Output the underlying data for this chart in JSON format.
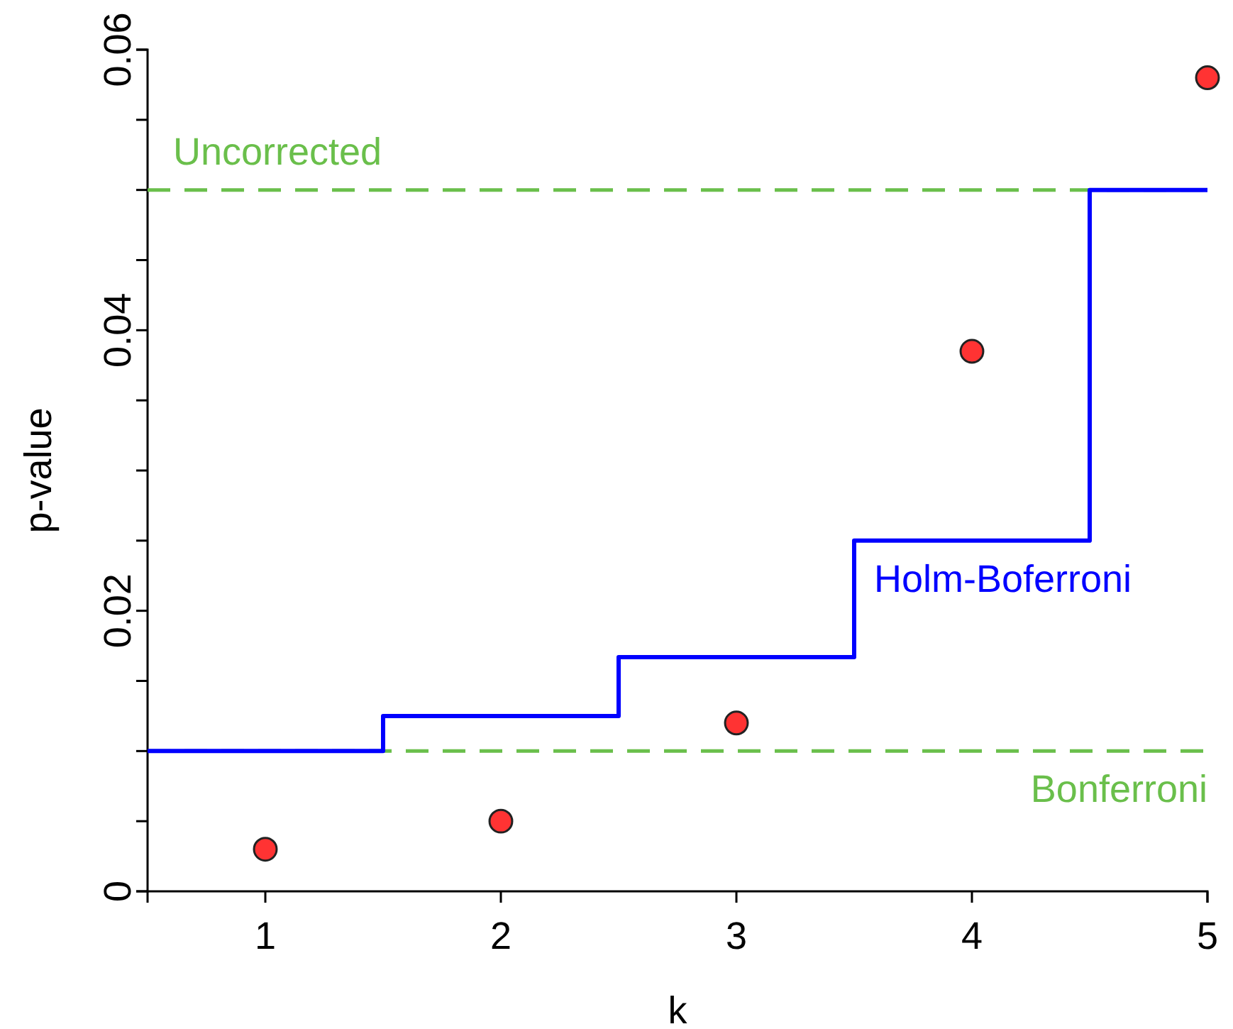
{
  "chart_data": {
    "type": "scatter",
    "xlabel": "k",
    "ylabel": "p-value",
    "xlim": [
      0.5,
      5
    ],
    "xticks": [
      1,
      2,
      3,
      4,
      5
    ],
    "ylim": [
      0,
      0.06
    ],
    "yticks": [
      0,
      {
        "value": 0.005,
        "label": null
      },
      {
        "value": 0.01,
        "label": null
      },
      {
        "value": 0.015,
        "label": null
      },
      0.02,
      {
        "value": 0.025,
        "label": null
      },
      {
        "value": 0.03,
        "label": null
      },
      {
        "value": 0.035,
        "label": null
      },
      0.04,
      {
        "value": 0.045,
        "label": null
      },
      {
        "value": 0.05,
        "label": null
      },
      {
        "value": 0.055,
        "label": null
      },
      0.06
    ],
    "grid": false,
    "marker": "circle",
    "series": [
      {
        "type": "step",
        "name": "Holm-Boferroni",
        "marker": "none",
        "color": "#0000ff",
        "x": [
          0.5,
          1.5,
          2.5,
          3.5,
          4.5,
          5
        ],
        "values": [
          0.01,
          0.0125,
          0.0167,
          0.025,
          0.05,
          0.05
        ]
      },
      {
        "color": "#ff3333",
        "x": [
          1,
          2,
          3,
          4,
          5
        ],
        "values": [
          0.003,
          0.005,
          0.012,
          0.0385,
          0.058
        ]
      }
    ],
    "ref_lines": [
      {
        "axis": "y",
        "value": 0.05,
        "label": "Uncorrected",
        "color": "#6abf4b",
        "line_style": "dashed"
      },
      {
        "axis": "y",
        "value": 0.01,
        "label": "Bonferroni",
        "color": "#6abf4b",
        "line_style": "dashed"
      }
    ]
  }
}
